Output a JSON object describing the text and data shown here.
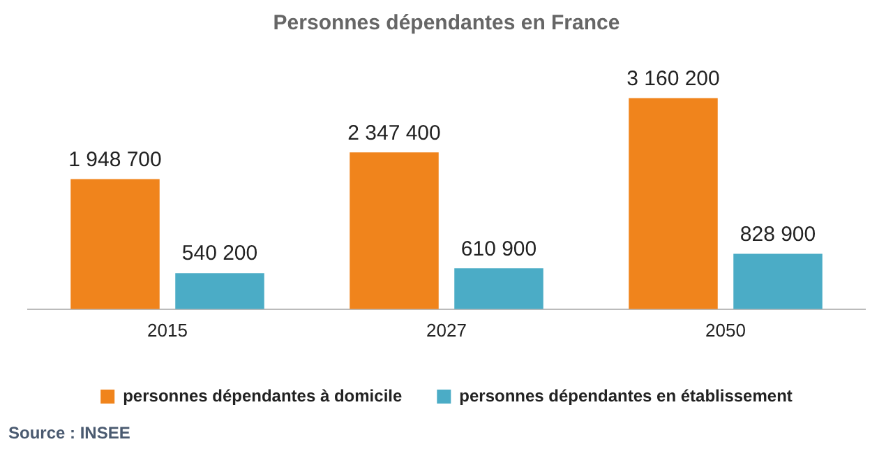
{
  "chart_data": {
    "type": "bar",
    "title": "Personnes dépendantes en France",
    "categories": [
      "2015",
      "2027",
      "2050"
    ],
    "series": [
      {
        "name": "personnes dépendantes à domicile",
        "color": "#f0841c",
        "values": [
          1948700,
          2347400,
          3160200
        ],
        "value_labels": [
          "1 948 700",
          "2 347 400",
          "3 160 200"
        ]
      },
      {
        "name": "personnes dépendantes en établissement",
        "color": "#4bacc6",
        "values": [
          540200,
          610900,
          828900
        ],
        "value_labels": [
          "540 200",
          "610 900",
          "828 900"
        ]
      }
    ],
    "legend": "bottom",
    "grid": false,
    "tick_labels": "x",
    "annotations": [
      "Source : INSEE"
    ]
  }
}
